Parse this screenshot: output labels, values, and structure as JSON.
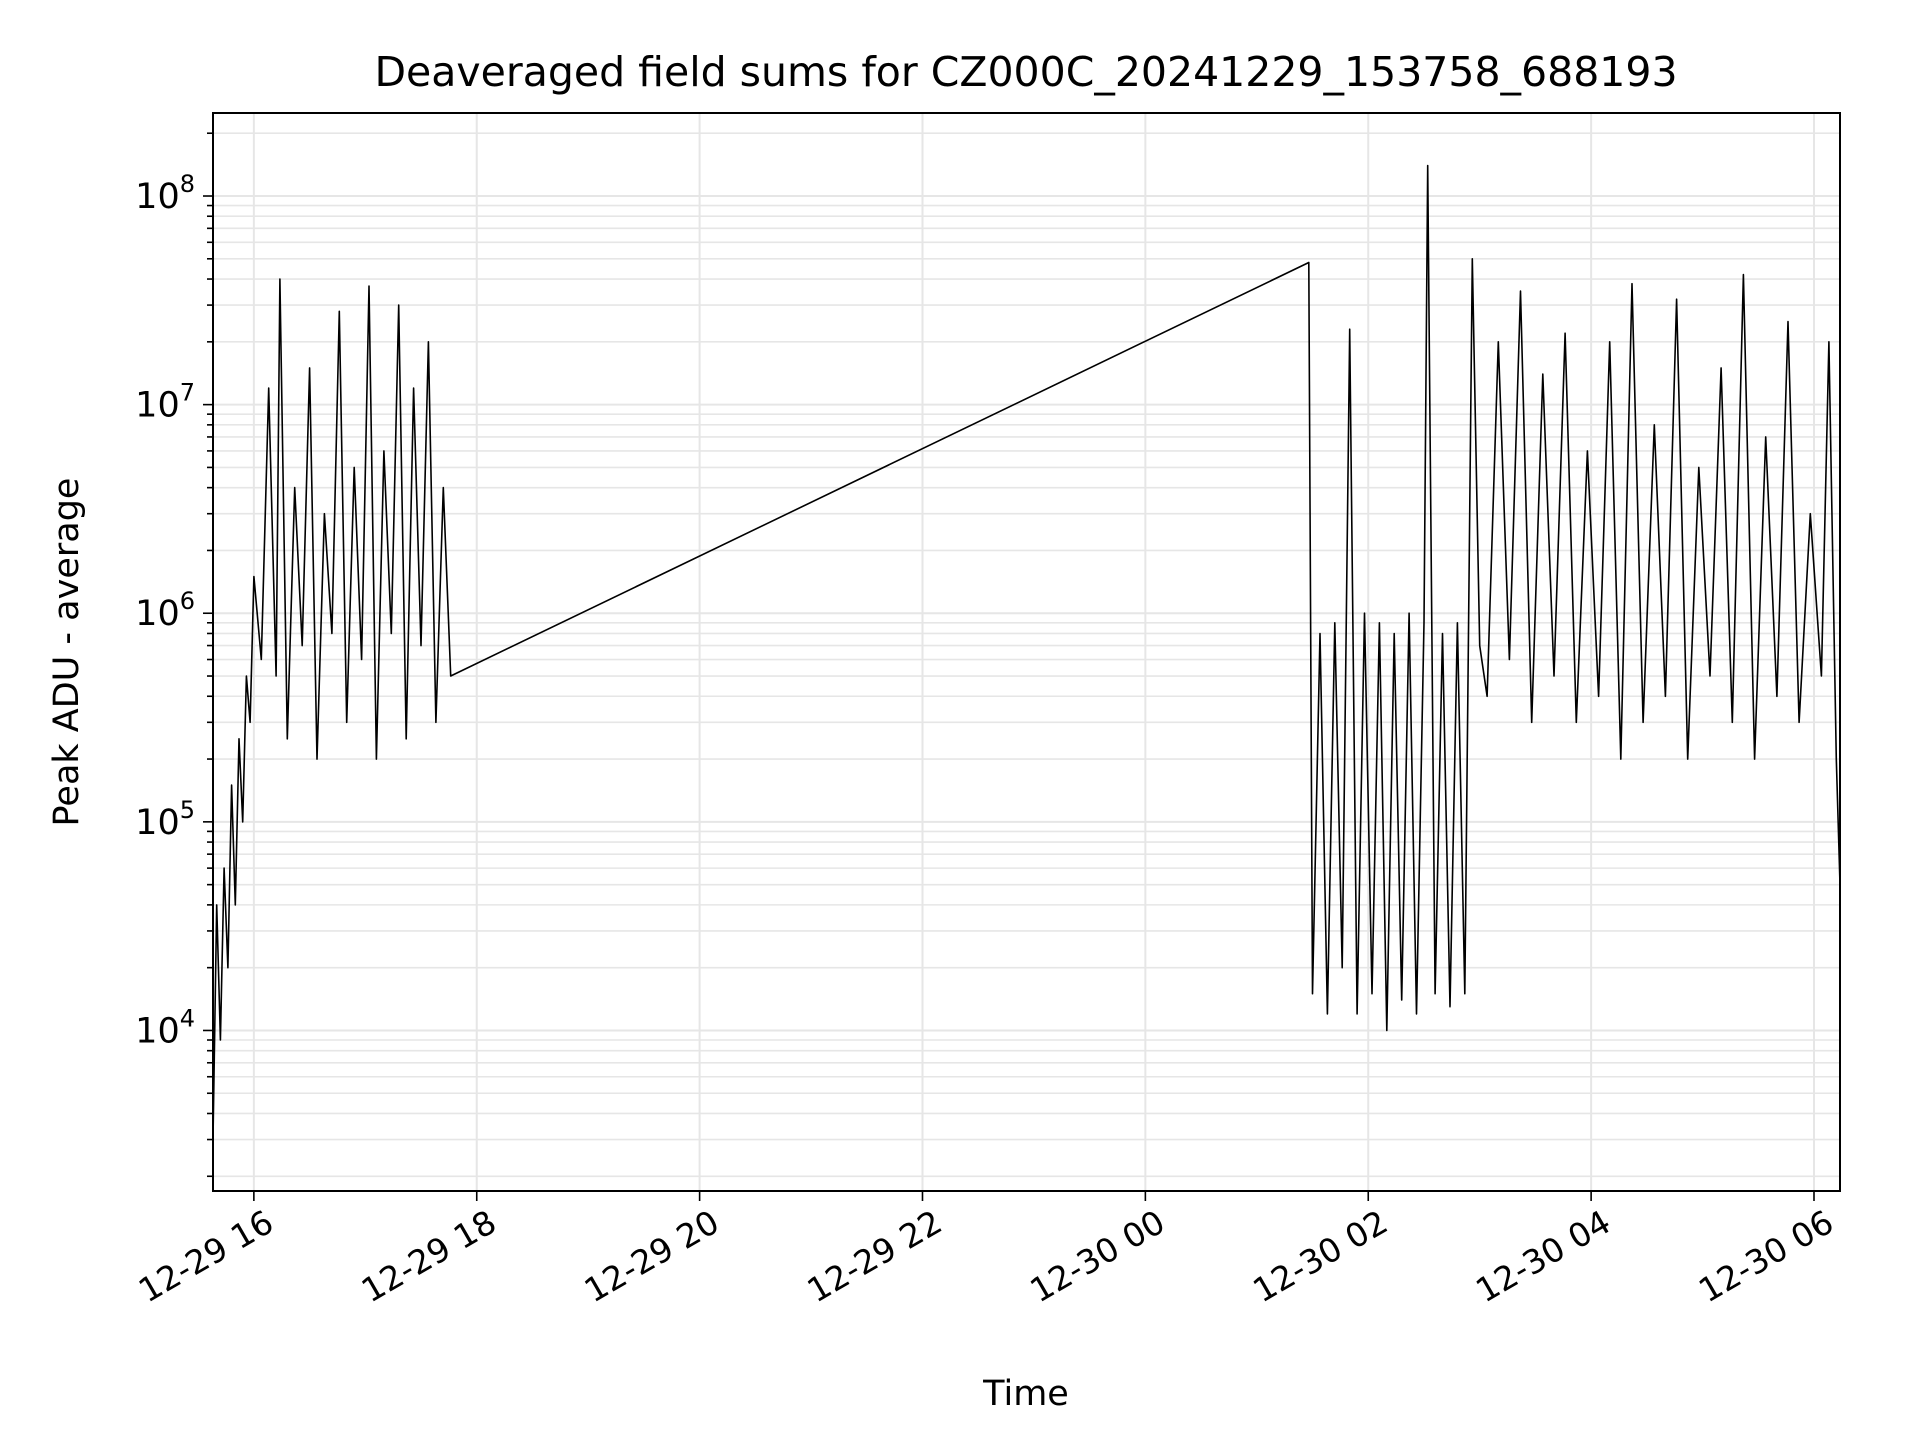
{
  "chart_data": {
    "type": "line",
    "title": "Deaveraged field sums for CZ000C_20241229_153758_688193",
    "xlabel": "Time",
    "ylabel": "Peak ADU - average",
    "yscale": "log",
    "ylim": [
      1700,
      250000000
    ],
    "xlim": [
      "2024-12-29 15:38",
      "2024-12-30 06:14"
    ],
    "grid": "both",
    "line_color": "#000000",
    "x_ticks": [
      {
        "value": "2024-12-29 16:00",
        "label": "12-29 16"
      },
      {
        "value": "2024-12-29 18:00",
        "label": "12-29 18"
      },
      {
        "value": "2024-12-29 20:00",
        "label": "12-29 20"
      },
      {
        "value": "2024-12-29 22:00",
        "label": "12-29 22"
      },
      {
        "value": "2024-12-30 00:00",
        "label": "12-30 00"
      },
      {
        "value": "2024-12-30 02:00",
        "label": "12-30 02"
      },
      {
        "value": "2024-12-30 04:00",
        "label": "12-30 04"
      },
      {
        "value": "2024-12-30 06:00",
        "label": "12-30 06"
      }
    ],
    "y_ticks": [
      {
        "value": 10000,
        "base": "10",
        "exp": "4"
      },
      {
        "value": 100000,
        "base": "10",
        "exp": "5"
      },
      {
        "value": 1000000,
        "base": "10",
        "exp": "6"
      },
      {
        "value": 10000000,
        "base": "10",
        "exp": "7"
      },
      {
        "value": 100000000,
        "base": "10",
        "exp": "8"
      }
    ],
    "series": [
      {
        "values": [
          [
            "2024-12-29 15:38",
            3000
          ],
          [
            "2024-12-29 15:40",
            40000
          ],
          [
            "2024-12-29 15:42",
            9000
          ],
          [
            "2024-12-29 15:44",
            60000
          ],
          [
            "2024-12-29 15:46",
            20000
          ],
          [
            "2024-12-29 15:48",
            150000
          ],
          [
            "2024-12-29 15:50",
            40000
          ],
          [
            "2024-12-29 15:52",
            250000
          ],
          [
            "2024-12-29 15:54",
            100000
          ],
          [
            "2024-12-29 15:56",
            500000
          ],
          [
            "2024-12-29 15:58",
            300000
          ],
          [
            "2024-12-29 16:00",
            1500000
          ],
          [
            "2024-12-29 16:04",
            600000
          ],
          [
            "2024-12-29 16:08",
            12000000
          ],
          [
            "2024-12-29 16:12",
            500000
          ],
          [
            "2024-12-29 16:14",
            40000000
          ],
          [
            "2024-12-29 16:18",
            250000
          ],
          [
            "2024-12-29 16:22",
            4000000
          ],
          [
            "2024-12-29 16:26",
            700000
          ],
          [
            "2024-12-29 16:30",
            15000000
          ],
          [
            "2024-12-29 16:34",
            200000
          ],
          [
            "2024-12-29 16:38",
            3000000
          ],
          [
            "2024-12-29 16:42",
            800000
          ],
          [
            "2024-12-29 16:46",
            28000000
          ],
          [
            "2024-12-29 16:50",
            300000
          ],
          [
            "2024-12-29 16:54",
            5000000
          ],
          [
            "2024-12-29 16:58",
            600000
          ],
          [
            "2024-12-29 17:02",
            37000000
          ],
          [
            "2024-12-29 17:06",
            200000
          ],
          [
            "2024-12-29 17:10",
            6000000
          ],
          [
            "2024-12-29 17:14",
            800000
          ],
          [
            "2024-12-29 17:18",
            30000000
          ],
          [
            "2024-12-29 17:22",
            250000
          ],
          [
            "2024-12-29 17:26",
            12000000
          ],
          [
            "2024-12-29 17:30",
            700000
          ],
          [
            "2024-12-29 17:34",
            20000000
          ],
          [
            "2024-12-29 17:38",
            300000
          ],
          [
            "2024-12-29 17:42",
            4000000
          ],
          [
            "2024-12-29 17:46",
            500000
          ],
          [
            "2024-12-30 01:28",
            48000000
          ],
          [
            "2024-12-30 01:30",
            15000
          ],
          [
            "2024-12-30 01:34",
            800000
          ],
          [
            "2024-12-30 01:38",
            12000
          ],
          [
            "2024-12-30 01:42",
            900000
          ],
          [
            "2024-12-30 01:46",
            20000
          ],
          [
            "2024-12-30 01:50",
            23000000
          ],
          [
            "2024-12-30 01:54",
            12000
          ],
          [
            "2024-12-30 01:58",
            1000000
          ],
          [
            "2024-12-30 02:02",
            15000
          ],
          [
            "2024-12-30 02:06",
            900000
          ],
          [
            "2024-12-30 02:10",
            10000
          ],
          [
            "2024-12-30 02:14",
            800000
          ],
          [
            "2024-12-30 02:18",
            14000
          ],
          [
            "2024-12-30 02:22",
            1000000
          ],
          [
            "2024-12-30 02:26",
            12000
          ],
          [
            "2024-12-30 02:30",
            900000
          ],
          [
            "2024-12-30 02:32",
            140000000
          ],
          [
            "2024-12-30 02:36",
            15000
          ],
          [
            "2024-12-30 02:40",
            800000
          ],
          [
            "2024-12-30 02:44",
            13000
          ],
          [
            "2024-12-30 02:48",
            900000
          ],
          [
            "2024-12-30 02:52",
            15000
          ],
          [
            "2024-12-30 02:56",
            50000000
          ],
          [
            "2024-12-30 03:00",
            700000
          ],
          [
            "2024-12-30 03:04",
            400000
          ],
          [
            "2024-12-30 03:10",
            20000000
          ],
          [
            "2024-12-30 03:16",
            600000
          ],
          [
            "2024-12-30 03:22",
            35000000
          ],
          [
            "2024-12-30 03:28",
            300000
          ],
          [
            "2024-12-30 03:34",
            14000000
          ],
          [
            "2024-12-30 03:40",
            500000
          ],
          [
            "2024-12-30 03:46",
            22000000
          ],
          [
            "2024-12-30 03:52",
            300000
          ],
          [
            "2024-12-30 03:58",
            6000000
          ],
          [
            "2024-12-30 04:04",
            400000
          ],
          [
            "2024-12-30 04:10",
            20000000
          ],
          [
            "2024-12-30 04:16",
            200000
          ],
          [
            "2024-12-30 04:22",
            38000000
          ],
          [
            "2024-12-30 04:28",
            300000
          ],
          [
            "2024-12-30 04:34",
            8000000
          ],
          [
            "2024-12-30 04:40",
            400000
          ],
          [
            "2024-12-30 04:46",
            32000000
          ],
          [
            "2024-12-30 04:52",
            200000
          ],
          [
            "2024-12-30 04:58",
            5000000
          ],
          [
            "2024-12-30 05:04",
            500000
          ],
          [
            "2024-12-30 05:10",
            15000000
          ],
          [
            "2024-12-30 05:16",
            300000
          ],
          [
            "2024-12-30 05:22",
            42000000
          ],
          [
            "2024-12-30 05:28",
            200000
          ],
          [
            "2024-12-30 05:34",
            7000000
          ],
          [
            "2024-12-30 05:40",
            400000
          ],
          [
            "2024-12-30 05:46",
            25000000
          ],
          [
            "2024-12-30 05:52",
            300000
          ],
          [
            "2024-12-30 05:58",
            3000000
          ],
          [
            "2024-12-30 06:04",
            500000
          ],
          [
            "2024-12-30 06:08",
            20000000
          ],
          [
            "2024-12-30 06:12",
            200000
          ],
          [
            "2024-12-30 06:14",
            50000
          ]
        ]
      }
    ]
  }
}
